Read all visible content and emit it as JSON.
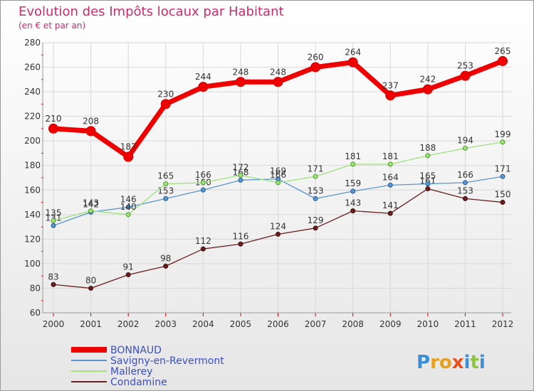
{
  "chart_data": {
    "type": "line",
    "title": "Evolution des Impôts locaux par Habitant",
    "subtitle": "(en € et par an)",
    "x": [
      "2000",
      "2001",
      "2002",
      "2003",
      "2004",
      "2005",
      "2006",
      "2007",
      "2008",
      "2009",
      "2010",
      "2011",
      "2012"
    ],
    "ylim": [
      60,
      280
    ],
    "yticks": [
      60,
      80,
      100,
      120,
      140,
      160,
      180,
      200,
      220,
      240,
      260,
      280
    ],
    "grid": true,
    "legend_placement": "bottom-left",
    "series": [
      {
        "name": "BONNAUD",
        "color": "#ee0000",
        "values": [
          210,
          208,
          187,
          230,
          244,
          248,
          248,
          260,
          264,
          237,
          242,
          253,
          265
        ],
        "labels": [
          "210",
          "208",
          "187",
          "230",
          "244",
          "248",
          "248",
          "260",
          "264",
          "237",
          "242",
          "253",
          "265"
        ]
      },
      {
        "name": "Savigny-en-Revermont",
        "color": "#5a96d2",
        "values": [
          131,
          142,
          146,
          153,
          160,
          168,
          169,
          153,
          159,
          164,
          165,
          166,
          171
        ],
        "labels": [
          "131",
          "142",
          "146",
          "153",
          "160",
          "168",
          "169",
          "153",
          "159",
          "164",
          "165",
          "166",
          "171"
        ]
      },
      {
        "name": "Mallerey",
        "color": "#9ee27a",
        "values": [
          135,
          143,
          140,
          165,
          166,
          172,
          166,
          171,
          181,
          181,
          188,
          194,
          199
        ],
        "labels": [
          "135",
          "143",
          "140",
          "165",
          "166",
          "172",
          "166",
          "171",
          "181",
          "181",
          "188",
          "194",
          "199"
        ]
      },
      {
        "name": "Condamine",
        "color": "#6b1f1f",
        "values": [
          83,
          80,
          91,
          98,
          112,
          116,
          124,
          129,
          143,
          141,
          161,
          153,
          150
        ],
        "labels": [
          "83",
          "80",
          "91",
          "98",
          "112",
          "116",
          "124",
          "129",
          "143",
          "141",
          "161",
          "153",
          "150"
        ]
      }
    ]
  },
  "brand": {
    "text": "Proxiti",
    "letters": [
      "P",
      "r",
      "o",
      "x",
      "i",
      "t",
      "i"
    ],
    "colors": [
      "#3a8fd6",
      "#e8a020",
      "#e8a020",
      "#e85020",
      "#3a8fd6",
      "#8cc640",
      "#3a8fd6"
    ]
  }
}
